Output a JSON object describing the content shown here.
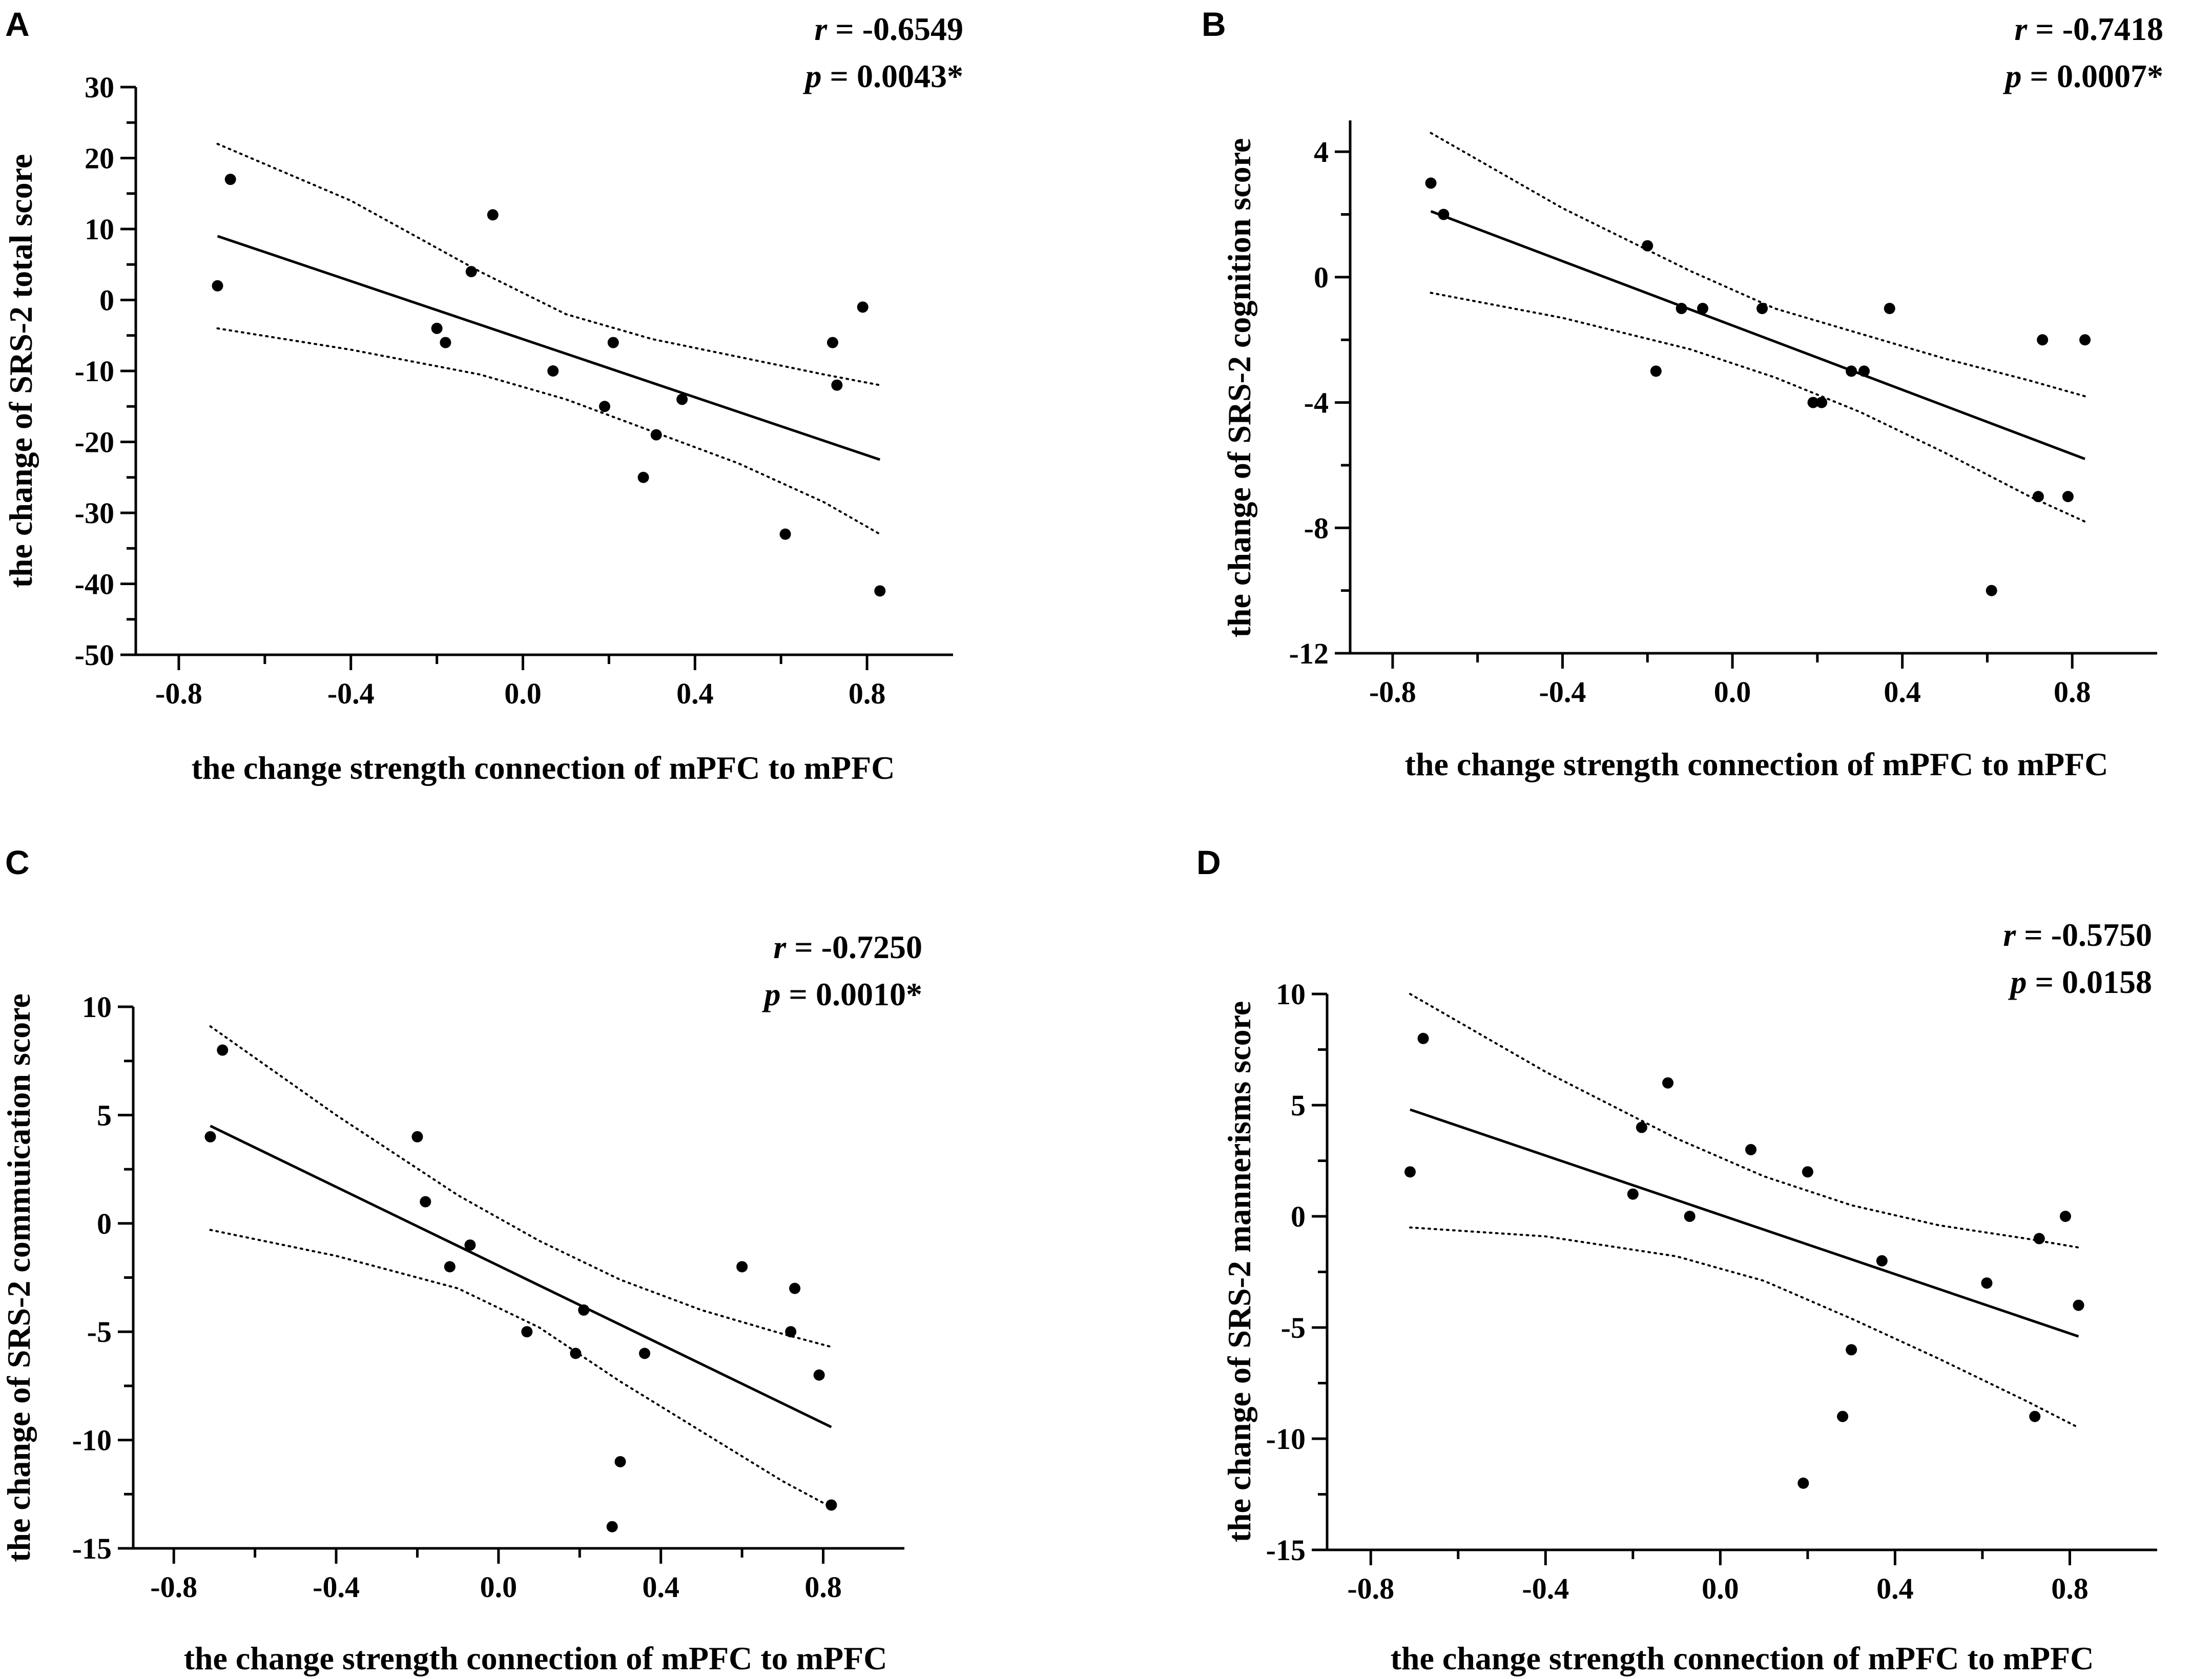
{
  "chart_data": [
    {
      "type": "scatter",
      "panel_label": "A",
      "xlabel": "the change strength connection of mPFC to mPFC",
      "ylabel": "the change of SRS-2 total score",
      "xlim": [
        -0.9,
        1.0
      ],
      "ylim": [
        -50,
        30
      ],
      "xticks": [
        -0.8,
        -0.4,
        0.0,
        0.4,
        0.8
      ],
      "xtick_labels": [
        "-0.8",
        "-0.4",
        "0.0",
        "0.4",
        "0.8"
      ],
      "yticks": [
        -50,
        -40,
        -30,
        -20,
        -10,
        0,
        10,
        20,
        30
      ],
      "ytick_labels": [
        "-50",
        "-40",
        "-30",
        "-20",
        "-10",
        "0",
        "10",
        "20",
        "30"
      ],
      "stat_r_sym": "r",
      "stat_r_val": " = -0.6549",
      "stat_p_sym": "p",
      "stat_p_val": " = 0.0043*",
      "points": [
        [
          -0.71,
          2
        ],
        [
          -0.68,
          17
        ],
        [
          -0.2,
          -4
        ],
        [
          -0.18,
          -6
        ],
        [
          -0.12,
          4
        ],
        [
          -0.07,
          12
        ],
        [
          0.07,
          -10
        ],
        [
          0.19,
          -15
        ],
        [
          0.21,
          -6
        ],
        [
          0.28,
          -25
        ],
        [
          0.31,
          -19
        ],
        [
          0.37,
          -14
        ],
        [
          0.61,
          -33
        ],
        [
          0.72,
          -6
        ],
        [
          0.73,
          -12
        ],
        [
          0.79,
          -1
        ],
        [
          0.83,
          -41
        ]
      ],
      "fit": [
        [
          -0.71,
          9
        ],
        [
          0.83,
          -22.5
        ]
      ],
      "ci_upper": [
        [
          -0.71,
          22
        ],
        [
          -0.4,
          14
        ],
        [
          -0.1,
          4
        ],
        [
          0.1,
          -2
        ],
        [
          0.3,
          -5.5
        ],
        [
          0.5,
          -8
        ],
        [
          0.7,
          -10.5
        ],
        [
          0.83,
          -12
        ]
      ],
      "ci_lower": [
        [
          -0.71,
          -4
        ],
        [
          -0.4,
          -7
        ],
        [
          -0.1,
          -10.5
        ],
        [
          0.1,
          -14
        ],
        [
          0.3,
          -18.5
        ],
        [
          0.5,
          -23
        ],
        [
          0.7,
          -28.5
        ],
        [
          0.83,
          -33
        ]
      ]
    },
    {
      "type": "scatter",
      "panel_label": "B",
      "xlabel": "the change strength connection of mPFC to mPFC",
      "ylabel": "the change of SRS-2 cognition score",
      "xlim": [
        -0.9,
        1.0
      ],
      "ylim": [
        -12,
        5
      ],
      "xticks": [
        -0.8,
        -0.4,
        0.0,
        0.4,
        0.8
      ],
      "xtick_labels": [
        "-0.8",
        "-0.4",
        "0.0",
        "0.4",
        "0.8"
      ],
      "yticks": [
        -12,
        -8,
        -4,
        0,
        4
      ],
      "ytick_labels": [
        "-12",
        "-8",
        "-4",
        "0",
        "4"
      ],
      "stat_r_sym": "r",
      "stat_r_val": " = -0.7418",
      "stat_p_sym": "p",
      "stat_p_val": " = 0.0007*",
      "points": [
        [
          -0.71,
          3
        ],
        [
          -0.68,
          2
        ],
        [
          -0.2,
          1
        ],
        [
          -0.18,
          -3
        ],
        [
          -0.12,
          -1
        ],
        [
          -0.07,
          -1
        ],
        [
          0.07,
          -1
        ],
        [
          0.19,
          -4
        ],
        [
          0.21,
          -4
        ],
        [
          0.28,
          -3
        ],
        [
          0.31,
          -3
        ],
        [
          0.37,
          -1
        ],
        [
          0.61,
          -10
        ],
        [
          0.72,
          -7
        ],
        [
          0.73,
          -2
        ],
        [
          0.79,
          -7
        ],
        [
          0.83,
          -2
        ]
      ],
      "fit": [
        [
          -0.71,
          2.1
        ],
        [
          0.83,
          -5.8
        ]
      ],
      "ci_upper": [
        [
          -0.71,
          4.6
        ],
        [
          -0.4,
          2.2
        ],
        [
          -0.1,
          0.2
        ],
        [
          0.1,
          -1
        ],
        [
          0.3,
          -1.8
        ],
        [
          0.5,
          -2.6
        ],
        [
          0.7,
          -3.3
        ],
        [
          0.83,
          -3.8
        ]
      ],
      "ci_lower": [
        [
          -0.71,
          -0.5
        ],
        [
          -0.4,
          -1.3
        ],
        [
          -0.1,
          -2.3
        ],
        [
          0.1,
          -3.2
        ],
        [
          0.3,
          -4.3
        ],
        [
          0.5,
          -5.6
        ],
        [
          0.7,
          -7
        ],
        [
          0.83,
          -7.8
        ]
      ]
    },
    {
      "type": "scatter",
      "panel_label": "C",
      "xlabel": "the change strength connection of mPFC to mPFC",
      "ylabel": "the change of SRS-2 commuication score",
      "xlim": [
        -0.9,
        1.0
      ],
      "ylim": [
        -15,
        10
      ],
      "xticks": [
        -0.8,
        -0.4,
        0.0,
        0.4,
        0.8
      ],
      "xtick_labels": [
        "-0.8",
        "-0.4",
        "0.0",
        "0.4",
        "0.8"
      ],
      "yticks": [
        -15,
        -10,
        -5,
        0,
        5,
        10
      ],
      "ytick_labels": [
        "-15",
        "-10",
        "-5",
        "0",
        "5",
        "10"
      ],
      "stat_r_sym": "r",
      "stat_r_val": " = -0.7250",
      "stat_p_sym": "p",
      "stat_p_val": " = 0.0010*",
      "points": [
        [
          -0.71,
          4
        ],
        [
          -0.68,
          8
        ],
        [
          -0.2,
          4
        ],
        [
          -0.18,
          1
        ],
        [
          -0.12,
          -2
        ],
        [
          -0.07,
          -1
        ],
        [
          0.07,
          -5
        ],
        [
          0.19,
          -6
        ],
        [
          0.21,
          -4
        ],
        [
          0.28,
          -14
        ],
        [
          0.3,
          -11
        ],
        [
          0.36,
          -6
        ],
        [
          0.6,
          -2
        ],
        [
          0.72,
          -5
        ],
        [
          0.73,
          -3
        ],
        [
          0.79,
          -7
        ],
        [
          0.82,
          -13
        ]
      ],
      "fit": [
        [
          -0.71,
          4.5
        ],
        [
          0.82,
          -9.4
        ]
      ],
      "ci_upper": [
        [
          -0.71,
          9.1
        ],
        [
          -0.4,
          5
        ],
        [
          -0.1,
          1.3
        ],
        [
          0.1,
          -0.8
        ],
        [
          0.3,
          -2.6
        ],
        [
          0.5,
          -4
        ],
        [
          0.7,
          -5.1
        ],
        [
          0.82,
          -5.7
        ]
      ],
      "ci_lower": [
        [
          -0.71,
          -0.3
        ],
        [
          -0.4,
          -1.5
        ],
        [
          -0.1,
          -3
        ],
        [
          0.1,
          -4.8
        ],
        [
          0.3,
          -7.3
        ],
        [
          0.5,
          -9.6
        ],
        [
          0.7,
          -11.9
        ],
        [
          0.82,
          -13.1
        ]
      ]
    },
    {
      "type": "scatter",
      "panel_label": "D",
      "xlabel": "the change strength connection of mPFC to mPFC",
      "ylabel": "the change of SRS-2 mannerisms  score",
      "xlim": [
        -0.9,
        1.0
      ],
      "ylim": [
        -15,
        10
      ],
      "xticks": [
        -0.8,
        -0.4,
        0.0,
        0.4,
        0.8
      ],
      "xtick_labels": [
        "-0.8",
        "-0.4",
        "0.0",
        "0.4",
        "0.8"
      ],
      "yticks": [
        -15,
        -10,
        -5,
        0,
        5,
        10
      ],
      "ytick_labels": [
        "-15",
        "-10",
        "-5",
        "0",
        "5",
        "10"
      ],
      "stat_r_sym": "r",
      "stat_r_val": " = -0.5750",
      "stat_p_sym": "p",
      "stat_p_val": " = 0.0158",
      "points": [
        [
          -0.71,
          2
        ],
        [
          -0.68,
          8
        ],
        [
          -0.2,
          1
        ],
        [
          -0.18,
          4
        ],
        [
          -0.12,
          6
        ],
        [
          -0.07,
          0
        ],
        [
          0.07,
          3
        ],
        [
          0.19,
          -12
        ],
        [
          0.2,
          2
        ],
        [
          0.28,
          -9
        ],
        [
          0.3,
          -6
        ],
        [
          0.37,
          -2
        ],
        [
          0.61,
          -3
        ],
        [
          0.72,
          -9
        ],
        [
          0.73,
          -1
        ],
        [
          0.79,
          0
        ],
        [
          0.82,
          -4
        ]
      ],
      "fit": [
        [
          -0.71,
          4.8
        ],
        [
          0.82,
          -5.4
        ]
      ],
      "ci_upper": [
        [
          -0.71,
          10
        ],
        [
          -0.4,
          6.5
        ],
        [
          -0.1,
          3.5
        ],
        [
          0.1,
          1.8
        ],
        [
          0.3,
          0.5
        ],
        [
          0.5,
          -0.4
        ],
        [
          0.7,
          -1
        ],
        [
          0.82,
          -1.4
        ]
      ],
      "ci_lower": [
        [
          -0.71,
          -0.5
        ],
        [
          -0.4,
          -0.9
        ],
        [
          -0.1,
          -1.8
        ],
        [
          0.1,
          -2.9
        ],
        [
          0.3,
          -4.6
        ],
        [
          0.5,
          -6.4
        ],
        [
          0.7,
          -8.3
        ],
        [
          0.82,
          -9.5
        ]
      ]
    }
  ]
}
